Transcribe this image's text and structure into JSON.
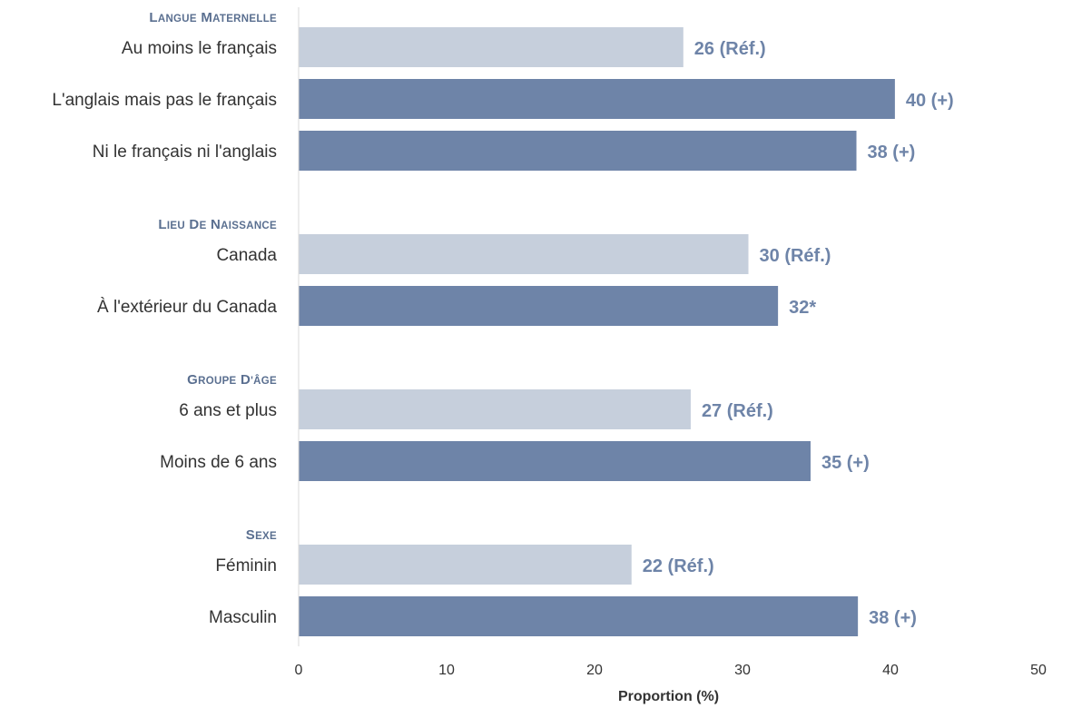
{
  "chart_data": {
    "type": "bar",
    "orientation": "horizontal",
    "xlabel": "Proportion (%)",
    "xlim": [
      0,
      50
    ],
    "xticks": [
      0,
      10,
      20,
      30,
      40,
      50
    ],
    "grid": false,
    "colors": {
      "reference": "#c6cfdc",
      "comparison": "#6e84a8",
      "group_label": "#5a6f90",
      "value_label": "#6e84a8"
    },
    "groups": [
      {
        "label": "Langue maternelle",
        "bars": [
          {
            "category": "Au moins le français",
            "value": 26,
            "label": "26 (Réf.)",
            "reference": true
          },
          {
            "category": "L'anglais mais pas le français",
            "value": 40.3,
            "label": "40 (+)",
            "reference": false
          },
          {
            "category": "Ni le français ni l'anglais",
            "value": 37.7,
            "label": "38 (+)",
            "reference": false
          }
        ]
      },
      {
        "label": "Lieu de naissance",
        "bars": [
          {
            "category": "Canada",
            "value": 30.4,
            "label": "30 (Réf.)",
            "reference": true
          },
          {
            "category": "À l'extérieur du Canada",
            "value": 32.4,
            "label": "32*",
            "reference": false
          }
        ]
      },
      {
        "label": "Groupe d'âge",
        "bars": [
          {
            "category": "6 ans et plus",
            "value": 26.5,
            "label": "27 (Réf.)",
            "reference": true
          },
          {
            "category": "Moins de 6 ans",
            "value": 34.6,
            "label": "35 (+)",
            "reference": false
          }
        ]
      },
      {
        "label": "Sexe",
        "bars": [
          {
            "category": "Féminin",
            "value": 22.5,
            "label": "22 (Réf.)",
            "reference": true
          },
          {
            "category": "Masculin",
            "value": 37.8,
            "label": "38 (+)",
            "reference": false
          }
        ]
      }
    ]
  }
}
